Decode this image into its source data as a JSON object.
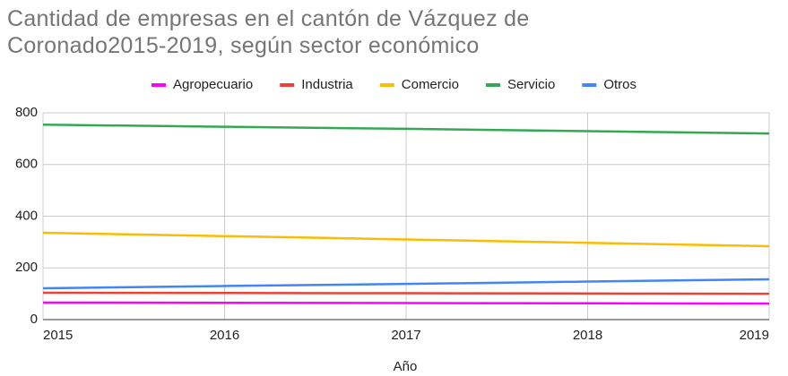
{
  "chart_data": {
    "type": "line",
    "title": "Cantidad de empresas en el cantón de Vázquez de Coronado2015-2019, según sector económico",
    "x_label": "Año",
    "x": [
      2015,
      2016,
      2017,
      2018,
      2019
    ],
    "xlim": [
      2015,
      2019
    ],
    "xticks": [
      2015,
      2016,
      2017,
      2018,
      2019
    ],
    "ylim": [
      0,
      800
    ],
    "yticks": [
      0,
      200,
      400,
      600,
      800
    ],
    "grid": true,
    "legend": "top",
    "series": [
      {
        "name": "Agropecuario",
        "color": "#ff00ff",
        "values": [
          66,
          65,
          64,
          63,
          62
        ]
      },
      {
        "name": "Industria",
        "color": "#ea4335",
        "values": [
          104,
          103,
          102,
          101,
          100
        ]
      },
      {
        "name": "Comercio",
        "color": "#fbbc04",
        "values": [
          336,
          323,
          310,
          297,
          284
        ]
      },
      {
        "name": "Servicio",
        "color": "#34a853",
        "values": [
          754,
          746,
          738,
          729,
          720
        ]
      },
      {
        "name": "Otros",
        "color": "#4285f4",
        "values": [
          121,
          130,
          138,
          147,
          156
        ]
      }
    ]
  }
}
